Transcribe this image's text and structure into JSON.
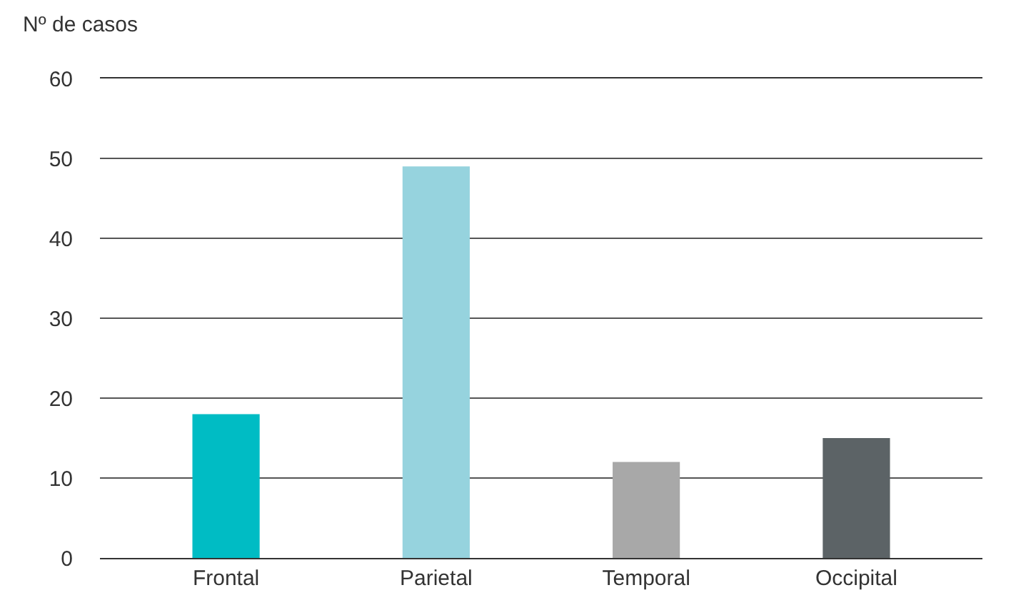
{
  "chart_data": {
    "type": "bar",
    "ylabel": "Nº de casos",
    "categories": [
      "Frontal",
      "Parietal",
      "Temporal",
      "Occipital"
    ],
    "values": [
      18,
      49,
      12,
      15
    ],
    "colors": [
      "#00bcc4",
      "#96d3de",
      "#a8a8a8",
      "#5c6366"
    ],
    "ylim": [
      0,
      60
    ],
    "yticks": [
      0,
      10,
      20,
      30,
      40,
      50,
      60
    ],
    "grid": "y"
  }
}
